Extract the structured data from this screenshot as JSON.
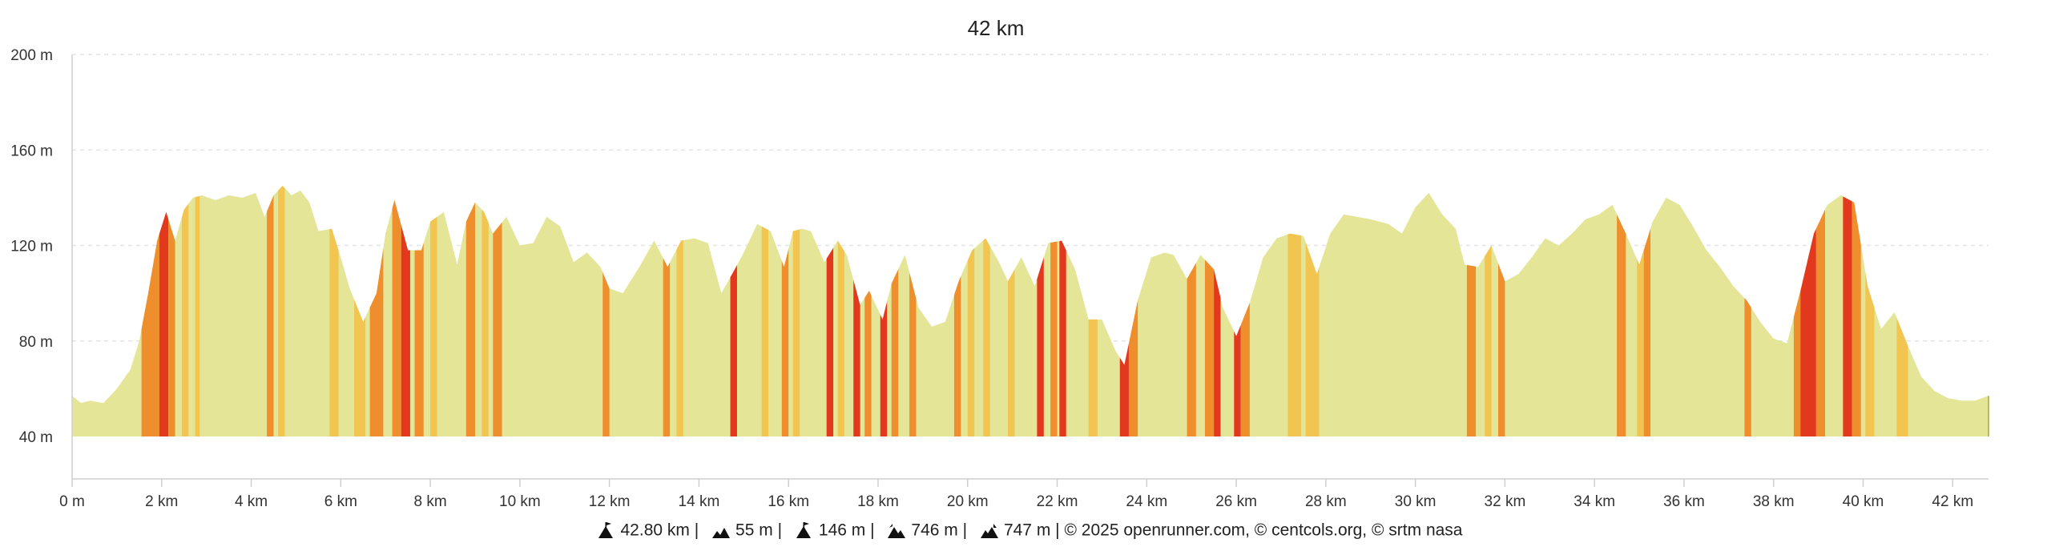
{
  "chart_data": {
    "type": "area",
    "title": "42 km",
    "xlabel": "",
    "ylabel": "",
    "xlim": [
      0,
      42.8
    ],
    "ylim": [
      40,
      200
    ],
    "y_ticks": [
      40,
      80,
      120,
      160,
      200
    ],
    "y_tick_labels": [
      "40 m",
      "80 m",
      "120 m",
      "160 m",
      "200 m"
    ],
    "x_ticks": [
      0,
      2,
      4,
      6,
      8,
      10,
      12,
      14,
      16,
      18,
      20,
      22,
      24,
      26,
      28,
      30,
      32,
      34,
      36,
      38,
      40,
      42
    ],
    "x_tick_labels": [
      "0 m",
      "2 km",
      "4 km",
      "6 km",
      "8 km",
      "10 km",
      "12 km",
      "14 km",
      "16 km",
      "18 km",
      "20 km",
      "22 km",
      "24 km",
      "26 km",
      "28 km",
      "30 km",
      "32 km",
      "34 km",
      "36 km",
      "38 km",
      "40 km",
      "42 km"
    ],
    "grid": true,
    "legend": "none",
    "colors": {
      "base": "#e4e597",
      "moderate": "#f1c550",
      "steep": "#ee8e2d",
      "very_steep": "#e2381e",
      "axis": "#cfcfcf",
      "text": "#222222"
    },
    "series": [
      {
        "x": [
          0,
          0.2,
          0.4,
          0.7,
          1.0,
          1.3,
          1.5,
          1.7,
          1.9,
          2.1,
          2.3,
          2.5,
          2.7,
          2.9,
          3.2,
          3.5,
          3.8,
          4.1,
          4.3,
          4.5,
          4.7,
          4.9,
          5.1,
          5.3,
          5.5,
          5.8,
          6.0,
          6.2,
          6.5,
          6.8,
          7.0,
          7.2,
          7.5,
          7.8,
          8.0,
          8.3,
          8.6,
          8.8,
          9.0,
          9.2,
          9.4,
          9.7,
          10.0,
          10.3,
          10.6,
          10.9,
          11.2,
          11.5,
          11.8,
          12.0,
          12.3,
          12.7,
          13.0,
          13.3,
          13.6,
          13.9,
          14.2,
          14.5,
          14.8,
          15.0,
          15.3,
          15.6,
          15.9,
          16.1,
          16.3,
          16.5,
          16.8,
          17.1,
          17.3,
          17.6,
          17.8,
          18.1,
          18.3,
          18.6,
          18.9,
          19.2,
          19.5,
          19.8,
          20.1,
          20.4,
          20.7,
          20.9,
          21.2,
          21.5,
          21.8,
          22.1,
          22.4,
          22.7,
          23.0,
          23.3,
          23.5,
          23.8,
          24.1,
          24.4,
          24.6,
          24.9,
          25.2,
          25.5,
          25.7,
          26.0,
          26.3,
          26.6,
          26.9,
          27.2,
          27.5,
          27.8,
          28.1,
          28.4,
          28.7,
          29.0,
          29.4,
          29.7,
          30.0,
          30.3,
          30.6,
          30.9,
          31.1,
          31.4,
          31.7,
          32.0,
          32.3,
          32.6,
          32.9,
          33.2,
          33.5,
          33.8,
          34.1,
          34.4,
          34.7,
          35.0,
          35.3,
          35.6,
          35.9,
          36.2,
          36.5,
          36.8,
          37.1,
          37.4,
          37.7,
          38.0,
          38.3,
          38.6,
          38.9,
          39.2,
          39.5,
          39.8,
          40.1,
          40.4,
          40.7,
          41.0,
          41.3,
          41.6,
          41.9,
          42.2,
          42.5,
          42.8
        ],
        "y": [
          57,
          54,
          55,
          54,
          60,
          68,
          80,
          100,
          122,
          134,
          122,
          135,
          140,
          141,
          139,
          141,
          140,
          142,
          132,
          141,
          145,
          141,
          143,
          138,
          126,
          127,
          115,
          102,
          88,
          100,
          125,
          139,
          118,
          118,
          130,
          134,
          112,
          130,
          138,
          134,
          125,
          132,
          120,
          121,
          132,
          128,
          113,
          117,
          111,
          102,
          100,
          112,
          122,
          111,
          122,
          123,
          121,
          100,
          110,
          117,
          129,
          126,
          111,
          126,
          127,
          126,
          113,
          122,
          116,
          95,
          101,
          89,
          104,
          116,
          94,
          86,
          88,
          105,
          118,
          123,
          113,
          105,
          115,
          103,
          121,
          122,
          110,
          89,
          89,
          76,
          70,
          97,
          115,
          117,
          116,
          106,
          116,
          110,
          94,
          82,
          96,
          115,
          123,
          125,
          124,
          108,
          125,
          133,
          132,
          131,
          129,
          125,
          136,
          142,
          133,
          127,
          112,
          111,
          120,
          105,
          108,
          115,
          123,
          120,
          125,
          131,
          133,
          137,
          125,
          112,
          130,
          140,
          137,
          128,
          118,
          111,
          103,
          97,
          88,
          81,
          79,
          101,
          125,
          137,
          141,
          138,
          103,
          85,
          92,
          78,
          65,
          59,
          56,
          55,
          55,
          57
        ]
      }
    ],
    "slope_bands": [
      {
        "from": 1.55,
        "to": 1.95,
        "level": "steep"
      },
      {
        "from": 1.95,
        "to": 2.15,
        "level": "very_steep"
      },
      {
        "from": 2.15,
        "to": 2.3,
        "level": "steep"
      },
      {
        "from": 2.45,
        "to": 2.6,
        "level": "moderate"
      },
      {
        "from": 2.75,
        "to": 2.85,
        "level": "moderate"
      },
      {
        "from": 4.35,
        "to": 4.5,
        "level": "steep"
      },
      {
        "from": 4.6,
        "to": 4.75,
        "level": "moderate"
      },
      {
        "from": 5.75,
        "to": 5.95,
        "level": "moderate"
      },
      {
        "from": 6.3,
        "to": 6.55,
        "level": "moderate"
      },
      {
        "from": 6.65,
        "to": 6.95,
        "level": "steep"
      },
      {
        "from": 7.15,
        "to": 7.35,
        "level": "steep"
      },
      {
        "from": 7.35,
        "to": 7.55,
        "level": "very_steep"
      },
      {
        "from": 7.65,
        "to": 7.85,
        "level": "steep"
      },
      {
        "from": 8.0,
        "to": 8.15,
        "level": "moderate"
      },
      {
        "from": 8.8,
        "to": 9.0,
        "level": "steep"
      },
      {
        "from": 9.15,
        "to": 9.3,
        "level": "moderate"
      },
      {
        "from": 9.4,
        "to": 9.6,
        "level": "steep"
      },
      {
        "from": 11.85,
        "to": 12.0,
        "level": "steep"
      },
      {
        "from": 13.2,
        "to": 13.35,
        "level": "steep"
      },
      {
        "from": 13.5,
        "to": 13.65,
        "level": "moderate"
      },
      {
        "from": 14.7,
        "to": 14.85,
        "level": "very_steep"
      },
      {
        "from": 15.4,
        "to": 15.55,
        "level": "moderate"
      },
      {
        "from": 15.85,
        "to": 16.0,
        "level": "steep"
      },
      {
        "from": 16.1,
        "to": 16.25,
        "level": "moderate"
      },
      {
        "from": 16.85,
        "to": 17.0,
        "level": "very_steep"
      },
      {
        "from": 17.1,
        "to": 17.25,
        "level": "moderate"
      },
      {
        "from": 17.45,
        "to": 17.6,
        "level": "very_steep"
      },
      {
        "from": 17.7,
        "to": 17.85,
        "level": "steep"
      },
      {
        "from": 18.05,
        "to": 18.2,
        "level": "very_steep"
      },
      {
        "from": 18.3,
        "to": 18.45,
        "level": "steep"
      },
      {
        "from": 18.7,
        "to": 18.85,
        "level": "steep"
      },
      {
        "from": 19.7,
        "to": 19.85,
        "level": "steep"
      },
      {
        "from": 20.0,
        "to": 20.15,
        "level": "moderate"
      },
      {
        "from": 20.35,
        "to": 20.5,
        "level": "moderate"
      },
      {
        "from": 20.9,
        "to": 21.05,
        "level": "moderate"
      },
      {
        "from": 21.55,
        "to": 21.7,
        "level": "very_steep"
      },
      {
        "from": 21.85,
        "to": 22.0,
        "level": "steep"
      },
      {
        "from": 22.05,
        "to": 22.2,
        "level": "very_steep"
      },
      {
        "from": 22.7,
        "to": 22.9,
        "level": "moderate"
      },
      {
        "from": 23.4,
        "to": 23.6,
        "level": "very_steep"
      },
      {
        "from": 23.6,
        "to": 23.8,
        "level": "steep"
      },
      {
        "from": 24.9,
        "to": 25.1,
        "level": "steep"
      },
      {
        "from": 25.3,
        "to": 25.5,
        "level": "steep"
      },
      {
        "from": 25.5,
        "to": 25.65,
        "level": "very_steep"
      },
      {
        "from": 25.95,
        "to": 26.1,
        "level": "very_steep"
      },
      {
        "from": 26.1,
        "to": 26.3,
        "level": "steep"
      },
      {
        "from": 27.15,
        "to": 27.45,
        "level": "moderate"
      },
      {
        "from": 27.55,
        "to": 27.85,
        "level": "moderate"
      },
      {
        "from": 31.15,
        "to": 31.35,
        "level": "steep"
      },
      {
        "from": 31.55,
        "to": 31.7,
        "level": "moderate"
      },
      {
        "from": 31.85,
        "to": 32.0,
        "level": "steep"
      },
      {
        "from": 34.5,
        "to": 34.7,
        "level": "steep"
      },
      {
        "from": 34.95,
        "to": 35.1,
        "level": "moderate"
      },
      {
        "from": 35.1,
        "to": 35.25,
        "level": "steep"
      },
      {
        "from": 37.35,
        "to": 37.5,
        "level": "steep"
      },
      {
        "from": 38.45,
        "to": 38.6,
        "level": "steep"
      },
      {
        "from": 38.6,
        "to": 38.95,
        "level": "very_steep"
      },
      {
        "from": 38.95,
        "to": 39.15,
        "level": "steep"
      },
      {
        "from": 39.55,
        "to": 39.75,
        "level": "very_steep"
      },
      {
        "from": 39.75,
        "to": 39.95,
        "level": "steep"
      },
      {
        "from": 40.05,
        "to": 40.25,
        "level": "moderate"
      },
      {
        "from": 40.75,
        "to": 41.0,
        "level": "moderate"
      }
    ]
  },
  "footer": {
    "distance": "42.80 km",
    "min_altitude": "55 m",
    "max_altitude": "146 m",
    "elevation_gain": "746 m",
    "elevation_loss": "747 m",
    "credits": "© 2025 openrunner.com, © centcols.org, © srtm nasa",
    "separator": "|",
    "icons": [
      "distance-icon",
      "min-altitude-icon",
      "max-altitude-icon",
      "elevation-gain-icon",
      "elevation-loss-icon"
    ]
  }
}
